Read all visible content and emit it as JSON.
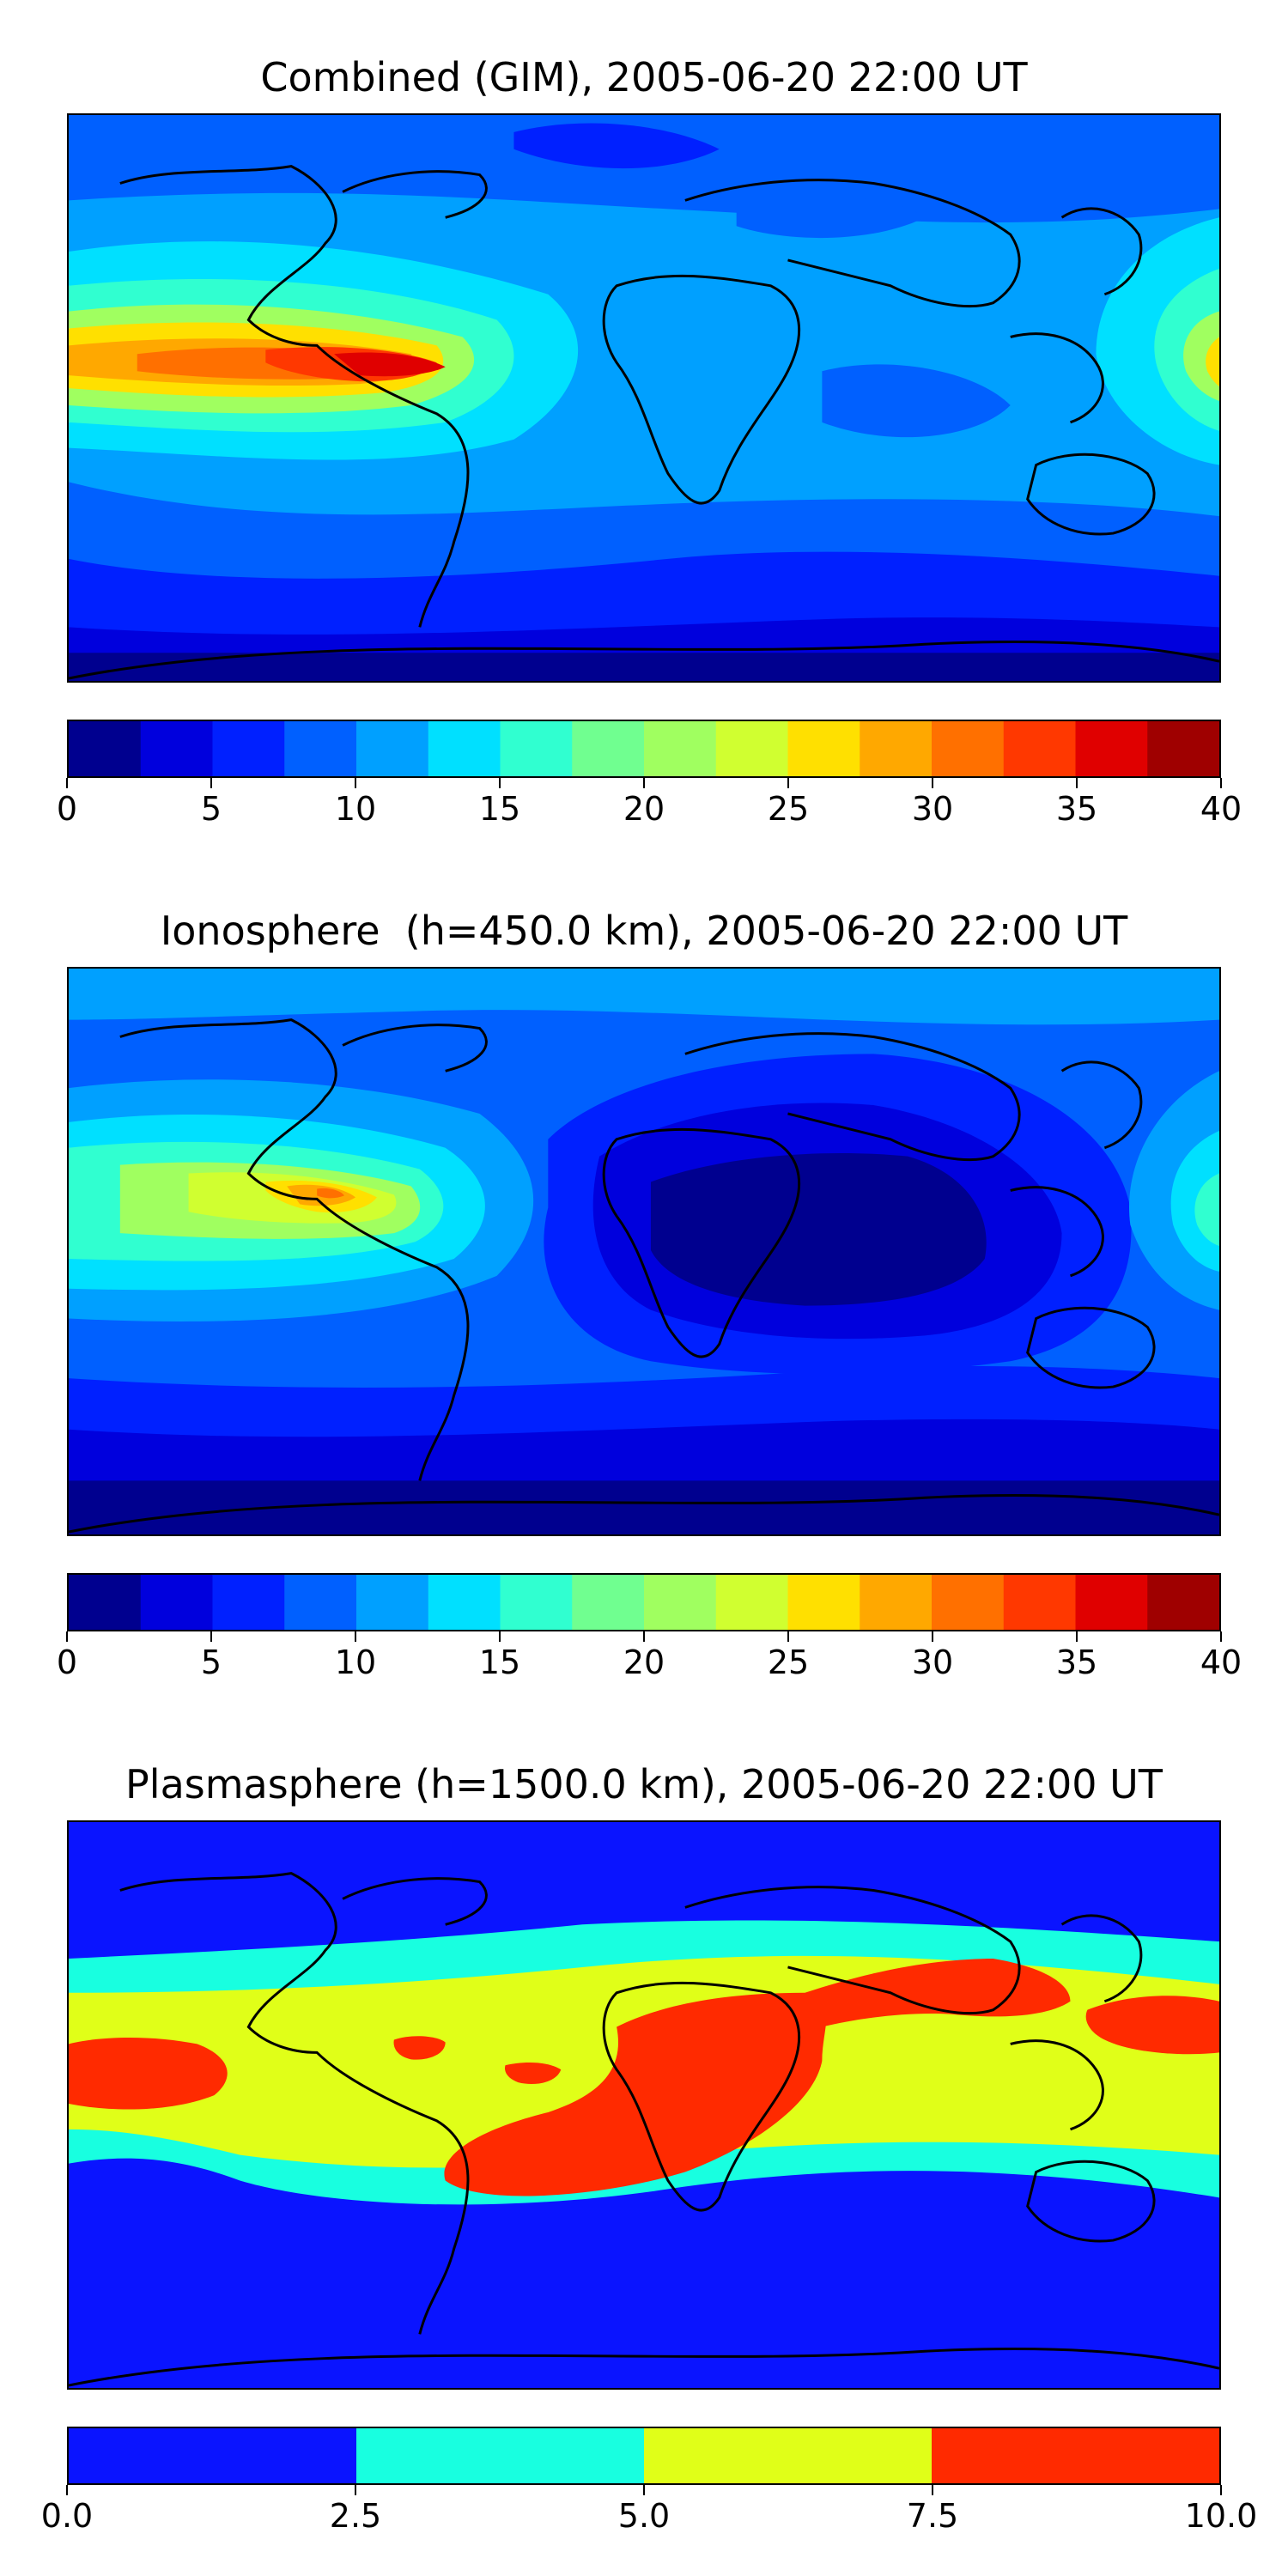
{
  "panels": [
    {
      "title": "Combined (GIM), 2005-06-20 22:00 UT",
      "colorbar": {
        "ticks": [
          "0",
          "5",
          "10",
          "15",
          "20",
          "25",
          "30",
          "35",
          "40"
        ],
        "colors": [
          "#00008f",
          "#0000dd",
          "#0020ff",
          "#0060ff",
          "#00a0ff",
          "#00e0ff",
          "#30ffd0",
          "#70ff90",
          "#a0ff60",
          "#d0ff30",
          "#ffe000",
          "#ffa800",
          "#ff7000",
          "#ff3800",
          "#e00000",
          "#9f0000"
        ]
      }
    },
    {
      "title": "Ionosphere  (h=450.0 km), 2005-06-20 22:00 UT",
      "colorbar": {
        "ticks": [
          "0",
          "5",
          "10",
          "15",
          "20",
          "25",
          "30",
          "35",
          "40"
        ],
        "colors": [
          "#00008f",
          "#0000dd",
          "#0020ff",
          "#0060ff",
          "#00a0ff",
          "#00e0ff",
          "#30ffd0",
          "#70ff90",
          "#a0ff60",
          "#d0ff30",
          "#ffe000",
          "#ffa800",
          "#ff7000",
          "#ff3800",
          "#e00000",
          "#9f0000"
        ]
      }
    },
    {
      "title": "Plasmasphere (h=1500.0 km), 2005-06-20 22:00 UT",
      "colorbar": {
        "ticks": [
          "0.0",
          "2.5",
          "5.0",
          "7.5",
          "10.0"
        ],
        "colors": [
          "#0a14ff",
          "#18ffe0",
          "#e0ff18",
          "#ff2a00"
        ]
      }
    }
  ]
}
